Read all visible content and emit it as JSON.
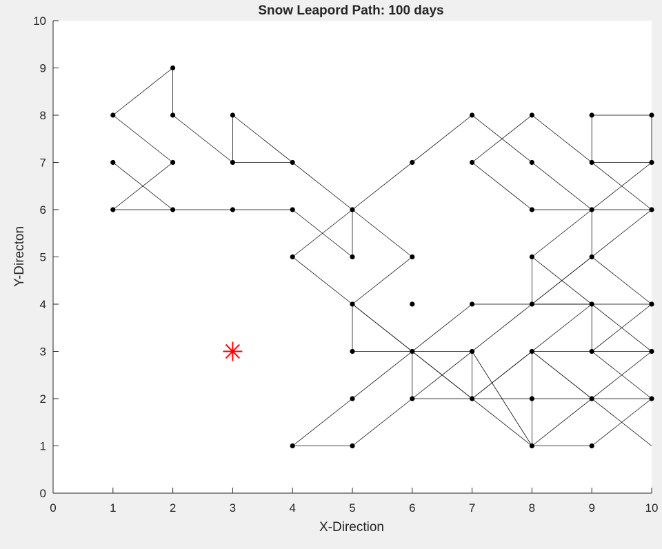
{
  "chart_data": {
    "type": "line",
    "title": "Snow Leapord Path: 100 days",
    "xlabel": "X-Direction",
    "ylabel": "Y-Directon",
    "xlim": [
      0,
      10
    ],
    "ylim": [
      0,
      10
    ],
    "xticks": [
      "0",
      "1",
      "2",
      "3",
      "4",
      "5",
      "6",
      "7",
      "8",
      "9",
      "10"
    ],
    "yticks": [
      "0",
      "1",
      "2",
      "3",
      "4",
      "5",
      "6",
      "7",
      "8",
      "9",
      "10"
    ],
    "grid": false,
    "colors": {
      "path": "#000000",
      "marker": "#ff0000",
      "plot_bg": "#ffffff",
      "figure_bg": "#f0f0f0"
    },
    "path_segments": [
      [
        1,
        8,
        2,
        9
      ],
      [
        2,
        9,
        2,
        8
      ],
      [
        2,
        8,
        3,
        7
      ],
      [
        1,
        8,
        2,
        7
      ],
      [
        2,
        7,
        1,
        6
      ],
      [
        1,
        7,
        2,
        6
      ],
      [
        1,
        6,
        4,
        6
      ],
      [
        3,
        7,
        4,
        7
      ],
      [
        3,
        7,
        3,
        8
      ],
      [
        3,
        8,
        5,
        6
      ],
      [
        4,
        6,
        5,
        5
      ],
      [
        5,
        5,
        5,
        6
      ],
      [
        5,
        6,
        6,
        5
      ],
      [
        6,
        5,
        5,
        4
      ],
      [
        5,
        4,
        5,
        3
      ],
      [
        5,
        3,
        6,
        3
      ],
      [
        4,
        5,
        5,
        6
      ],
      [
        5,
        6,
        7,
        8
      ],
      [
        4,
        5,
        8,
        1
      ],
      [
        5,
        4,
        7,
        2
      ],
      [
        4,
        1,
        5,
        1
      ],
      [
        5,
        1,
        6,
        2
      ],
      [
        4,
        1,
        7,
        4
      ],
      [
        6,
        3,
        6,
        2
      ],
      [
        6,
        2,
        9,
        2
      ],
      [
        6,
        2,
        8,
        4
      ],
      [
        6,
        3,
        7,
        3
      ],
      [
        7,
        3,
        7,
        2
      ],
      [
        7,
        4,
        10,
        4
      ],
      [
        7,
        8,
        9,
        6
      ],
      [
        7,
        7,
        8,
        8
      ],
      [
        8,
        8,
        10,
        6
      ],
      [
        7,
        7,
        8,
        6
      ],
      [
        8,
        6,
        10,
        6
      ],
      [
        9,
        8,
        10,
        8
      ],
      [
        10,
        8,
        10,
        7
      ],
      [
        9,
        8,
        9,
        7
      ],
      [
        9,
        7,
        10,
        7
      ],
      [
        9,
        6,
        8,
        5
      ],
      [
        9,
        6,
        10,
        7
      ],
      [
        9,
        6,
        9,
        5
      ],
      [
        9,
        5,
        10,
        4
      ],
      [
        10,
        6,
        8,
        4
      ],
      [
        8,
        5,
        8,
        4
      ],
      [
        8,
        5,
        10,
        3
      ],
      [
        9,
        5,
        8,
        4
      ],
      [
        10,
        4,
        9,
        3
      ],
      [
        8,
        4,
        9,
        4
      ],
      [
        8,
        3,
        10,
        3
      ],
      [
        7,
        2,
        8,
        3
      ],
      [
        8,
        3,
        10,
        1
      ],
      [
        8,
        3,
        8,
        1
      ],
      [
        8,
        1,
        10,
        3
      ],
      [
        9,
        4,
        9,
        3
      ],
      [
        9,
        3,
        10,
        2
      ],
      [
        9,
        2,
        10,
        2
      ],
      [
        8,
        3,
        9,
        2
      ],
      [
        7,
        3,
        8,
        1
      ],
      [
        7,
        2,
        9,
        4
      ],
      [
        8,
        1,
        9,
        1
      ],
      [
        9,
        1,
        10,
        2
      ]
    ],
    "visited_points": [
      [
        1,
        8
      ],
      [
        1,
        7
      ],
      [
        1,
        6
      ],
      [
        2,
        9
      ],
      [
        2,
        8
      ],
      [
        2,
        7
      ],
      [
        2,
        6
      ],
      [
        3,
        8
      ],
      [
        3,
        7
      ],
      [
        3,
        6
      ],
      [
        4,
        7
      ],
      [
        4,
        6
      ],
      [
        4,
        5
      ],
      [
        4,
        1
      ],
      [
        5,
        6
      ],
      [
        5,
        5
      ],
      [
        5,
        4
      ],
      [
        5,
        3
      ],
      [
        5,
        2
      ],
      [
        5,
        1
      ],
      [
        6,
        7
      ],
      [
        6,
        5
      ],
      [
        6,
        4
      ],
      [
        6,
        3
      ],
      [
        6,
        2
      ],
      [
        7,
        8
      ],
      [
        7,
        7
      ],
      [
        7,
        4
      ],
      [
        7,
        3
      ],
      [
        7,
        2
      ],
      [
        8,
        8
      ],
      [
        8,
        7
      ],
      [
        8,
        6
      ],
      [
        8,
        5
      ],
      [
        8,
        4
      ],
      [
        8,
        3
      ],
      [
        8,
        2
      ],
      [
        8,
        1
      ],
      [
        9,
        8
      ],
      [
        9,
        7
      ],
      [
        9,
        6
      ],
      [
        9,
        5
      ],
      [
        9,
        4
      ],
      [
        9,
        3
      ],
      [
        9,
        2
      ],
      [
        9,
        1
      ],
      [
        10,
        8
      ],
      [
        10,
        7
      ],
      [
        10,
        6
      ],
      [
        10,
        4
      ],
      [
        10,
        3
      ],
      [
        10,
        2
      ]
    ],
    "marker_point": {
      "x": 3,
      "y": 3,
      "symbol": "*"
    }
  }
}
